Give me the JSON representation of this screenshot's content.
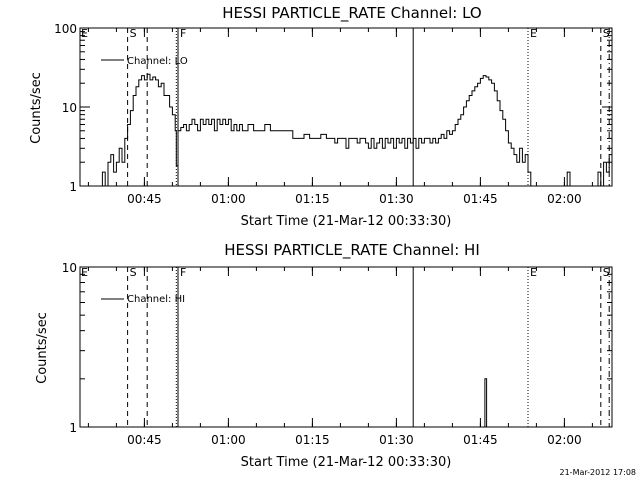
{
  "chart_data": [
    {
      "type": "line",
      "title": "HESSI PARTICLE_RATE Channel: LO",
      "xlabel": "Start Time (21-Mar-12 00:33:30)",
      "ylabel": "Counts/sec",
      "x_unit": "minutes after 00:33:30",
      "xlim": [
        0,
        95
      ],
      "ylim": [
        1,
        100
      ],
      "yscale": "log",
      "xticks": [
        {
          "x": 11.5,
          "label": "00:45"
        },
        {
          "x": 26.5,
          "label": "01:00"
        },
        {
          "x": 41.5,
          "label": "01:15"
        },
        {
          "x": 56.5,
          "label": "01:30"
        },
        {
          "x": 71.5,
          "label": "01:45"
        },
        {
          "x": 86.5,
          "label": "02:00"
        }
      ],
      "yticks": [
        {
          "y": 1,
          "label": "1"
        },
        {
          "y": 10,
          "label": "10"
        },
        {
          "y": 100,
          "label": "100"
        }
      ],
      "legend": {
        "label": "Channel: LO",
        "position": "top-left"
      },
      "markers": [
        {
          "x": 8.5,
          "style": "dashed",
          "label": "S"
        },
        {
          "x": 12.0,
          "style": "dashed",
          "label": ""
        },
        {
          "x": 17.2,
          "style": "dotted",
          "label": ""
        },
        {
          "x": 17.5,
          "style": "solid",
          "label": "F"
        },
        {
          "x": 59.5,
          "style": "solid",
          "label": ""
        },
        {
          "x": 80.0,
          "style": "dotted",
          "label": "E"
        },
        {
          "x": 93.0,
          "style": "dashed",
          "label": "S"
        },
        {
          "x": 94.5,
          "style": "dashdot",
          "label": ""
        }
      ],
      "edge_flags": [
        {
          "label": "E",
          "side": "left"
        }
      ],
      "series": [
        {
          "name": "Channel: LO",
          "points": [
            [
              3.0,
              0.8
            ],
            [
              3.5,
              1
            ],
            [
              4.0,
              1.5
            ],
            [
              4.5,
              1
            ],
            [
              4.8,
              0.8
            ],
            [
              5.0,
              2
            ],
            [
              5.5,
              2.5
            ],
            [
              6.0,
              1.5
            ],
            [
              6.5,
              2
            ],
            [
              7.0,
              3
            ],
            [
              7.5,
              2
            ],
            [
              8.0,
              4
            ],
            [
              8.5,
              6
            ],
            [
              9.0,
              9
            ],
            [
              9.5,
              14
            ],
            [
              10.0,
              18
            ],
            [
              10.5,
              22
            ],
            [
              11.0,
              25
            ],
            [
              11.5,
              22
            ],
            [
              12.0,
              26
            ],
            [
              12.5,
              22
            ],
            [
              13.0,
              24
            ],
            [
              13.5,
              22
            ],
            [
              14.0,
              18
            ],
            [
              14.5,
              20
            ],
            [
              15.0,
              14
            ],
            [
              15.5,
              14
            ],
            [
              16.0,
              10
            ],
            [
              16.5,
              8
            ],
            [
              17.0,
              5
            ],
            [
              17.2,
              1.8
            ],
            [
              17.5,
              5
            ],
            [
              18.0,
              5.5
            ],
            [
              18.5,
              6
            ],
            [
              19.0,
              5
            ],
            [
              19.5,
              6
            ],
            [
              20.0,
              7
            ],
            [
              20.5,
              6
            ],
            [
              21.0,
              5
            ],
            [
              21.5,
              7
            ],
            [
              22.0,
              6
            ],
            [
              22.5,
              7
            ],
            [
              23.0,
              6
            ],
            [
              23.5,
              7
            ],
            [
              24.0,
              5
            ],
            [
              24.5,
              7
            ],
            [
              25.0,
              6
            ],
            [
              25.5,
              7
            ],
            [
              26.0,
              6
            ],
            [
              26.5,
              7
            ],
            [
              27.0,
              5
            ],
            [
              27.5,
              6
            ],
            [
              28.0,
              5
            ],
            [
              28.5,
              6
            ],
            [
              29.0,
              5
            ],
            [
              30.0,
              6
            ],
            [
              31.0,
              5
            ],
            [
              32.0,
              5
            ],
            [
              33.0,
              6
            ],
            [
              34.0,
              5
            ],
            [
              35.0,
              5
            ],
            [
              36.0,
              5
            ],
            [
              37.0,
              5
            ],
            [
              38.0,
              4
            ],
            [
              39.0,
              4
            ],
            [
              40.0,
              4.5
            ],
            [
              41.0,
              4
            ],
            [
              42.0,
              4
            ],
            [
              43.0,
              4.5
            ],
            [
              44.0,
              4
            ],
            [
              45.0,
              4
            ],
            [
              45.5,
              3.5
            ],
            [
              46.0,
              4
            ],
            [
              47.0,
              4
            ],
            [
              47.5,
              3
            ],
            [
              48.0,
              4
            ],
            [
              49.0,
              4
            ],
            [
              49.5,
              3.5
            ],
            [
              50.0,
              4
            ],
            [
              51.0,
              3.5
            ],
            [
              51.5,
              3
            ],
            [
              52.0,
              4
            ],
            [
              52.5,
              3
            ],
            [
              53.0,
              3.5
            ],
            [
              53.5,
              4
            ],
            [
              54.0,
              3
            ],
            [
              54.5,
              4
            ],
            [
              55.0,
              3.5
            ],
            [
              55.5,
              4
            ],
            [
              56.0,
              3
            ],
            [
              56.5,
              4
            ],
            [
              57.0,
              3.5
            ],
            [
              57.5,
              4
            ],
            [
              58.0,
              3
            ],
            [
              58.5,
              4
            ],
            [
              59.0,
              3.5
            ],
            [
              59.5,
              4
            ],
            [
              60.0,
              3
            ],
            [
              60.5,
              4
            ],
            [
              61.0,
              3.5
            ],
            [
              61.5,
              4
            ],
            [
              62.0,
              4
            ],
            [
              62.5,
              3.5
            ],
            [
              63.0,
              4
            ],
            [
              63.5,
              3.5
            ],
            [
              64.0,
              4
            ],
            [
              64.5,
              4.5
            ],
            [
              65.0,
              4
            ],
            [
              65.5,
              5
            ],
            [
              66.0,
              4.5
            ],
            [
              66.5,
              5
            ],
            [
              67.0,
              6
            ],
            [
              67.5,
              7
            ],
            [
              68.0,
              8
            ],
            [
              68.5,
              10
            ],
            [
              69.0,
              12
            ],
            [
              69.5,
              14
            ],
            [
              70.0,
              16
            ],
            [
              70.5,
              18
            ],
            [
              71.0,
              20
            ],
            [
              71.5,
              23
            ],
            [
              72.0,
              25
            ],
            [
              72.5,
              24
            ],
            [
              73.0,
              22
            ],
            [
              73.5,
              20
            ],
            [
              74.0,
              16
            ],
            [
              74.5,
              12
            ],
            [
              75.0,
              9
            ],
            [
              75.5,
              7
            ],
            [
              76.0,
              5
            ],
            [
              76.5,
              3.5
            ],
            [
              77.0,
              3
            ],
            [
              77.5,
              2.5
            ],
            [
              78.0,
              2
            ],
            [
              78.5,
              3
            ],
            [
              79.0,
              2
            ],
            [
              79.5,
              2.5
            ],
            [
              80.0,
              1.5
            ],
            [
              80.5,
              0.8
            ],
            [
              86.5,
              0.8
            ],
            [
              87.0,
              1.5
            ],
            [
              87.5,
              0.8
            ],
            [
              92.0,
              0.8
            ],
            [
              92.5,
              1.5
            ],
            [
              93.0,
              1
            ],
            [
              93.5,
              2
            ],
            [
              94.0,
              1.5
            ],
            [
              94.5,
              2.5
            ],
            [
              95.0,
              3
            ]
          ]
        }
      ]
    },
    {
      "type": "line",
      "title": "HESSI PARTICLE_RATE Channel: HI",
      "xlabel": "Start Time (21-Mar-12 00:33:30)",
      "ylabel": "Counts/sec",
      "x_unit": "minutes after 00:33:30",
      "xlim": [
        0,
        95
      ],
      "ylim": [
        1,
        10
      ],
      "yscale": "log",
      "xticks": [
        {
          "x": 11.5,
          "label": "00:45"
        },
        {
          "x": 26.5,
          "label": "01:00"
        },
        {
          "x": 41.5,
          "label": "01:15"
        },
        {
          "x": 56.5,
          "label": "01:30"
        },
        {
          "x": 71.5,
          "label": "01:45"
        },
        {
          "x": 86.5,
          "label": "02:00"
        }
      ],
      "yticks": [
        {
          "y": 1,
          "label": "1"
        },
        {
          "y": 10,
          "label": "10"
        }
      ],
      "legend": {
        "label": "Channel: HI",
        "position": "top-left"
      },
      "markers": [
        {
          "x": 8.5,
          "style": "dashed",
          "label": "S"
        },
        {
          "x": 12.0,
          "style": "dashed",
          "label": ""
        },
        {
          "x": 17.2,
          "style": "dotted",
          "label": ""
        },
        {
          "x": 17.5,
          "style": "solid",
          "label": "F"
        },
        {
          "x": 59.5,
          "style": "solid",
          "label": ""
        },
        {
          "x": 80.0,
          "style": "dotted",
          "label": "E"
        },
        {
          "x": 93.0,
          "style": "dashed",
          "label": "S"
        },
        {
          "x": 94.5,
          "style": "dashdot",
          "label": ""
        }
      ],
      "edge_flags": [
        {
          "label": "E",
          "side": "left"
        }
      ],
      "series": [
        {
          "name": "Channel: HI",
          "points": [
            [
              72.0,
              0.9
            ],
            [
              72.3,
              2.0
            ],
            [
              72.6,
              0.9
            ]
          ]
        }
      ]
    }
  ],
  "footer": {
    "timestamp": "21-Mar-2012 17:08"
  }
}
